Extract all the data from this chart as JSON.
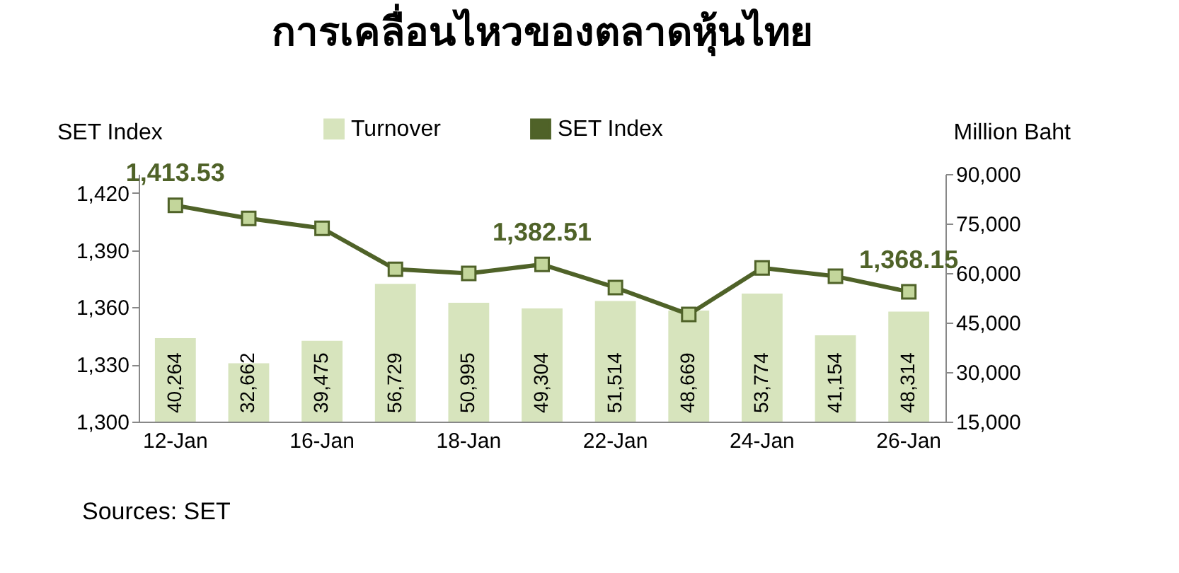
{
  "chart_data": {
    "type": "bar",
    "title": "การเคลื่อนไหวของตลาดหุ้นไทย",
    "ylabel": "SET Index",
    "y2label": "Million Baht",
    "annotations": [
      "Sources: SET"
    ],
    "categories": [
      "12-Jan",
      null,
      "16-Jan",
      null,
      "18-Jan",
      null,
      "22-Jan",
      null,
      "24-Jan",
      null,
      "26-Jan"
    ],
    "series": [
      {
        "name": "Turnover",
        "axis": "y2",
        "color": "#d7e4bd",
        "values": [
          40264,
          32662,
          39475,
          56729,
          50995,
          49304,
          51514,
          48669,
          53774,
          41154,
          48314
        ],
        "value_labels": [
          "40,264",
          "32,662",
          "39,475",
          "56,729",
          "50,995",
          "49,304",
          "51,514",
          "48,669",
          "53,774",
          "41,154",
          "48,314"
        ]
      },
      {
        "name": "SET Index",
        "type": "line",
        "color": "#4f6228",
        "values": [
          1413.53,
          1406.7,
          1401.5,
          1380,
          1377.8,
          1382.51,
          1370.4,
          1356.3,
          1380.7,
          1376.3,
          1368.15
        ],
        "value_labels": [
          "1,413.53",
          null,
          null,
          null,
          null,
          "1,382.51",
          null,
          null,
          null,
          null,
          "1,368.15"
        ]
      }
    ],
    "ylim": [
      1300,
      1430
    ],
    "yticks": [
      {
        "value": 1300,
        "label": "1,300"
      },
      {
        "value": 1330,
        "label": "1,330"
      },
      {
        "value": 1360,
        "label": "1,360"
      },
      {
        "value": 1390,
        "label": "1,390"
      },
      {
        "value": 1420,
        "label": "1,420"
      }
    ],
    "y2lim": [
      15000,
      90000
    ],
    "y2ticks": [
      {
        "value": 15000,
        "label": "15,000"
      },
      {
        "value": 30000,
        "label": "30,000"
      },
      {
        "value": 45000,
        "label": "45,000"
      },
      {
        "value": 60000,
        "label": "60,000"
      },
      {
        "value": 75000,
        "label": "75,000"
      },
      {
        "value": 90000,
        "label": "90,000"
      }
    ],
    "legend": "top",
    "marker": "square",
    "line_style": "solid",
    "grid": false
  }
}
